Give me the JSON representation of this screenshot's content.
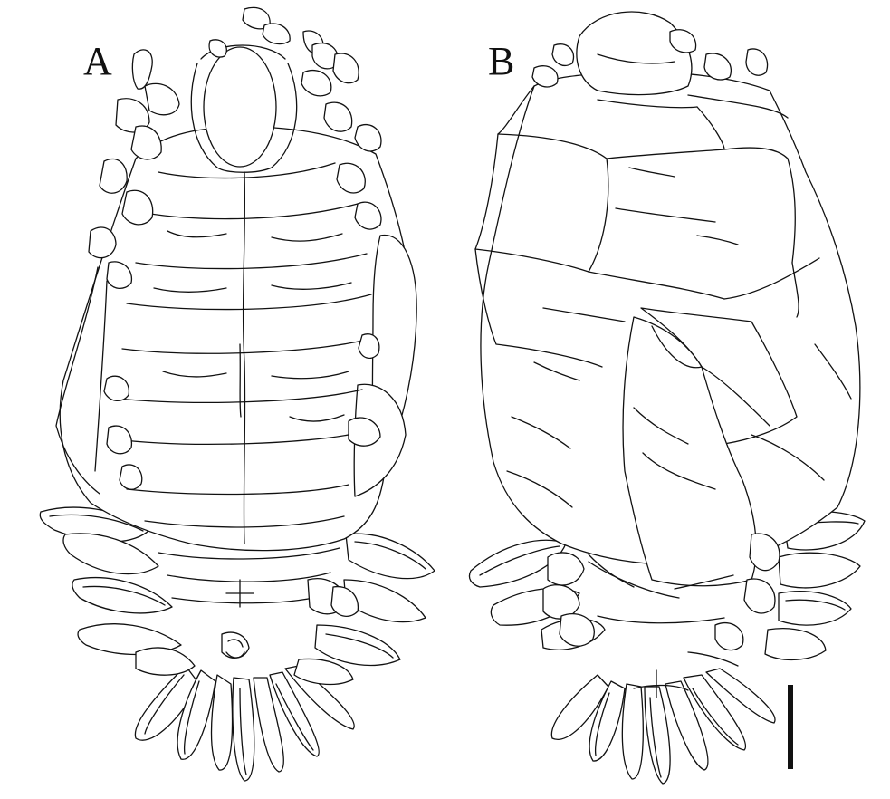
{
  "figure": {
    "panels": [
      {
        "id": "A",
        "label": "A",
        "view": "ventral"
      },
      {
        "id": "B",
        "label": "B",
        "view": "dorsal"
      }
    ],
    "colors": {
      "line": "#111111",
      "background": "#ffffff"
    }
  }
}
